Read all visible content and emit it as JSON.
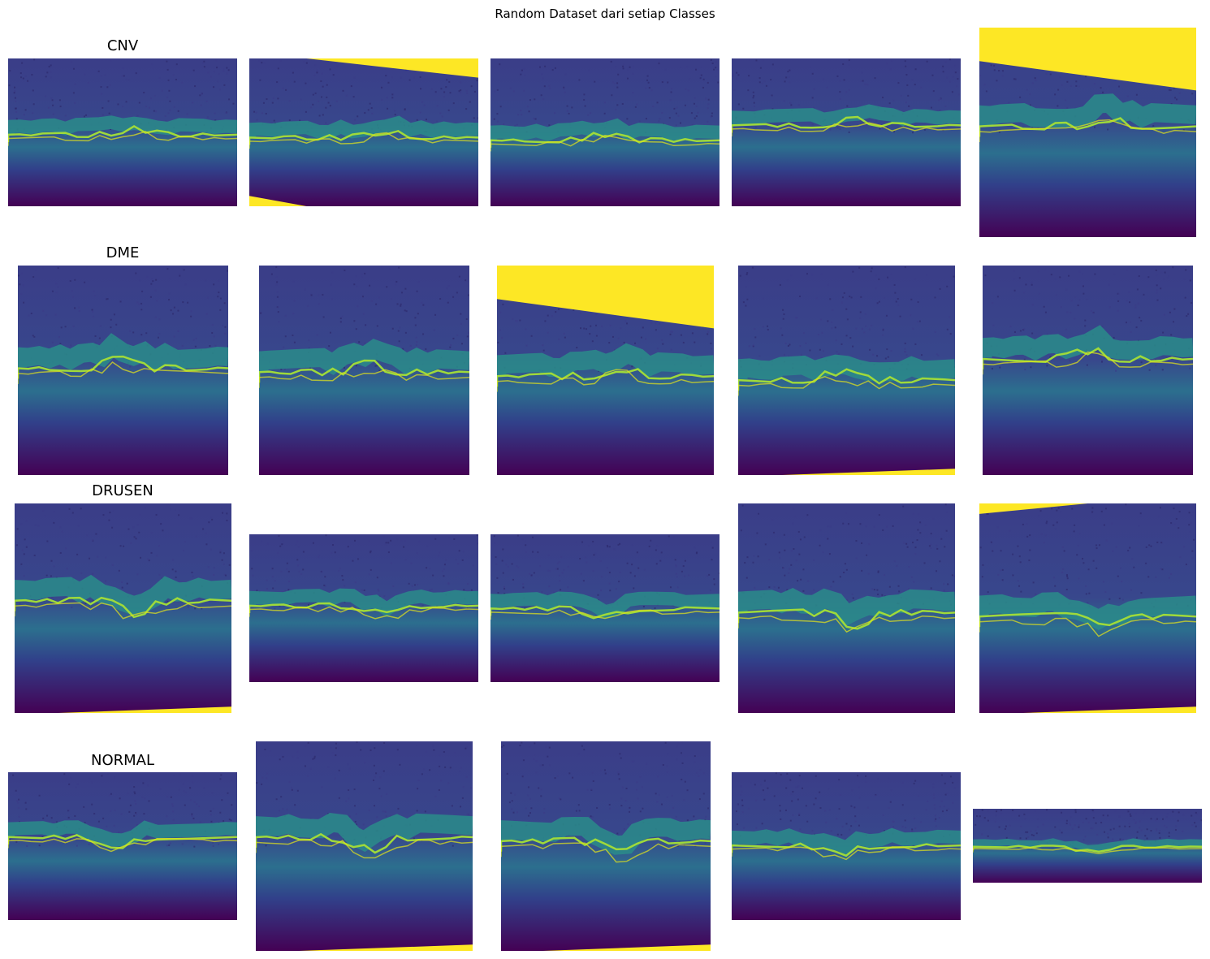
{
  "title": "Random Dataset dari setiap Classes",
  "classes": [
    "CNV",
    "DME",
    "DRUSEN",
    "NORMAL"
  ],
  "colors": {
    "background": "#44015a",
    "noise_a": "#3b3c87",
    "band_layer": "#2a8c8a",
    "bright_line": "#9fda3a",
    "hot_line": "#e4e61a",
    "pad_yellow": "#fde725",
    "deep_dark": "#440154"
  }
}
